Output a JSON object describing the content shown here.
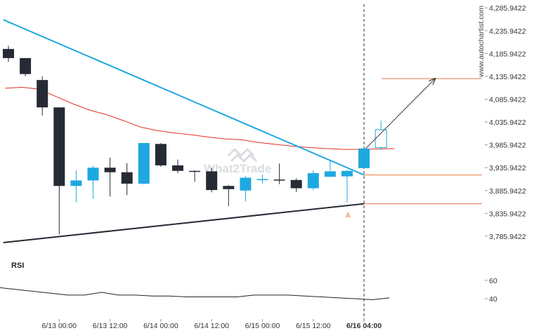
{
  "chart_data": {
    "type": "candlestick",
    "site_label": "www.autochartist.com",
    "watermark": "What2Trade",
    "panel_label": "RSI",
    "y_ticks": [
      "4,285.9422",
      "4,235.9422",
      "4,185.9422",
      "4,135.9422",
      "4,085.9422",
      "4,035.9422",
      "3,985.9422",
      "3,935.9422",
      "3,885.9422",
      "3,835.9422",
      "3,785.9422"
    ],
    "y_tick_values": [
      4285.9422,
      4235.9422,
      4185.9422,
      4135.9422,
      4085.9422,
      4035.9422,
      3985.9422,
      3935.9422,
      3885.9422,
      3835.9422,
      3785.9422
    ],
    "ylim": [
      3772,
      4294
    ],
    "x_ticks": [
      "6/13 00:00",
      "6/13 12:00",
      "6/14 00:00",
      "6/14 12:00",
      "6/15 00:00",
      "6/15 12:00",
      "6/16 04:00"
    ],
    "x_tick_index": [
      3,
      6,
      9,
      12,
      15,
      18,
      21
    ],
    "bold_x_tick": "6/16 04:00",
    "candles": [
      {
        "o": 4196,
        "h": 4203,
        "l": 4168,
        "c": 4176
      },
      {
        "o": 4176,
        "h": 4176,
        "l": 4136,
        "c": 4141
      },
      {
        "o": 4128,
        "h": 4136,
        "l": 4050,
        "c": 4068
      },
      {
        "o": 4068,
        "h": 4068,
        "l": 3790,
        "c": 3896
      },
      {
        "o": 3896,
        "h": 3930,
        "l": 3860,
        "c": 3908
      },
      {
        "o": 3908,
        "h": 3940,
        "l": 3868,
        "c": 3936
      },
      {
        "o": 3936,
        "h": 3958,
        "l": 3873,
        "c": 3926
      },
      {
        "o": 3926,
        "h": 3946,
        "l": 3876,
        "c": 3901
      },
      {
        "o": 3901,
        "h": 3990,
        "l": 3899,
        "c": 3990
      },
      {
        "o": 3988,
        "h": 3990,
        "l": 3938,
        "c": 3941
      },
      {
        "o": 3941,
        "h": 3954,
        "l": 3924,
        "c": 3929
      },
      {
        "o": 3929,
        "h": 3930,
        "l": 3905,
        "c": 3928
      },
      {
        "o": 3928,
        "h": 3936,
        "l": 3882,
        "c": 3887
      },
      {
        "o": 3896,
        "h": 3898,
        "l": 3852,
        "c": 3889
      },
      {
        "o": 3886,
        "h": 3918,
        "l": 3862,
        "c": 3914
      },
      {
        "o": 3911,
        "h": 3921,
        "l": 3902,
        "c": 3911
      },
      {
        "o": 3910,
        "h": 3945,
        "l": 3900,
        "c": 3909
      },
      {
        "o": 3909,
        "h": 3913,
        "l": 3883,
        "c": 3891
      },
      {
        "o": 3891,
        "h": 3930,
        "l": 3887,
        "c": 3924
      },
      {
        "o": 3916,
        "h": 3951,
        "l": 3916,
        "c": 3928
      },
      {
        "o": 3917,
        "h": 3931,
        "l": 3860,
        "c": 3929
      },
      {
        "o": 3935,
        "h": 3978,
        "l": 3934,
        "c": 3978
      }
    ],
    "projection_candle": {
      "o": 3980,
      "h": 4039,
      "l": 3975,
      "c": 4019
    },
    "moving_average": [
      4110,
      4112,
      4108,
      4092,
      4076,
      4062,
      4052,
      4039,
      4025,
      4017,
      4012,
      4008,
      4003,
      3999,
      3997,
      3991,
      3987,
      3983,
      3980,
      3978,
      3976,
      3976,
      3977,
      3978
    ],
    "resistance_line": {
      "from": {
        "index": -0.3,
        "value": 4260
      },
      "to": {
        "index": 21,
        "value": 3920
      }
    },
    "support_line": {
      "from": {
        "index": -0.3,
        "value": 3772
      },
      "to": {
        "index": 21,
        "value": 3857
      }
    },
    "levels": [
      {
        "value": 4131,
        "from_index": 22.05
      },
      {
        "value": 3920,
        "from_index": 21
      },
      {
        "value": 3857,
        "from_index": 21
      }
    ],
    "arrow": {
      "from": {
        "index": 21.1,
        "value": 3978
      },
      "to": {
        "index": 25.2,
        "value": 4131
      }
    },
    "point_label": {
      "text": "A",
      "index": 20,
      "value": 3840
    },
    "rsi_ticks": [
      "60",
      "40"
    ],
    "rsi_tick_values": [
      60,
      40
    ],
    "rsi_lim": [
      32.5,
      66
    ],
    "rsi_values": [
      52,
      50,
      48,
      46,
      44,
      44,
      47,
      44,
      44,
      43,
      43,
      42,
      42,
      42,
      42,
      44,
      44,
      44,
      43,
      42,
      41,
      40,
      39,
      41
    ],
    "colors": {
      "up": "#1ea8e0",
      "down": "#262a34",
      "moving_average": "#e0302a",
      "resistance": "#1ea8e0",
      "support": "#262a34",
      "level": "#e8743b",
      "arrow": "#333333"
    }
  }
}
